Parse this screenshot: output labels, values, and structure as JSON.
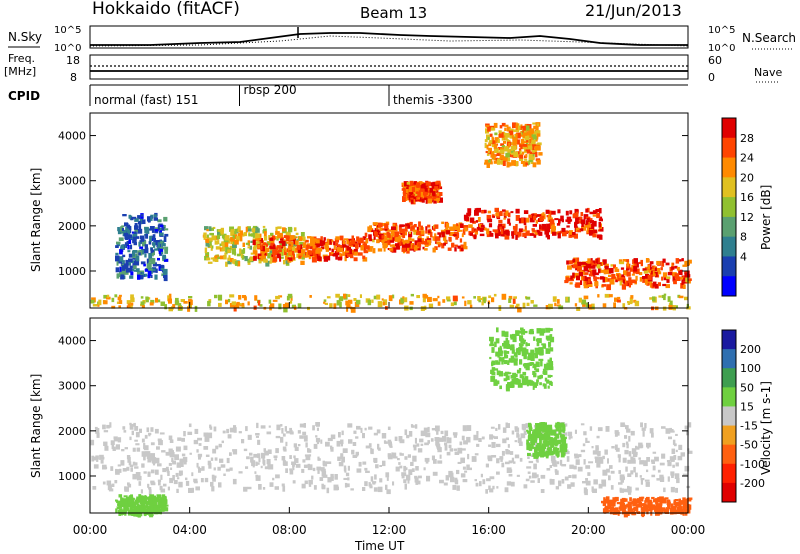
{
  "header": {
    "station": "Hokkaido (fitACF)",
    "beam": "Beam 13",
    "date": "21/Jun/2013"
  },
  "noise_panel": {
    "left_label": "N.Sky",
    "right_label": "N.Search",
    "tick_top": "10^5",
    "tick_bottom": "10^0"
  },
  "freq_panel": {
    "left_label_1": "Freq.",
    "left_label_2": "[MHz]",
    "right_label": "Nave",
    "left_tick_top": "18",
    "left_tick_bottom": "8",
    "right_tick_top": "60",
    "right_tick_bottom": "0"
  },
  "cpid_panel": {
    "label": "CPID",
    "modes": [
      {
        "name": "normal (fast) 151",
        "start_hour": 0
      },
      {
        "name": "rbsp 200",
        "start_hour": 6
      },
      {
        "name": "themis -3300",
        "start_hour": 12
      }
    ]
  },
  "power_panel": {
    "ylabel": "Slant Range [km]",
    "colorbar_label": "Power [dB]",
    "colorbar_ticks": [
      "28",
      "24",
      "20",
      "16",
      "12",
      "8",
      "4"
    ],
    "colors": [
      "#e00000",
      "#ff4400",
      "#ff8a00",
      "#e0c020",
      "#90c030",
      "#5aa070",
      "#2f7f8f",
      "#1a3fb0",
      "#0000ff"
    ]
  },
  "velocity_panel": {
    "ylabel": "Slant Range [km]",
    "colorbar_label": "Velocity [m s-1]",
    "colorbar_ticks": [
      "200",
      "100",
      "50",
      "15",
      "-15",
      "-50",
      "-100",
      "-200"
    ],
    "colors": [
      "#1a1aa0",
      "#2f6fb0",
      "#3e9e50",
      "#6fd040",
      "#c8c8c8",
      "#f0a020",
      "#ff6010",
      "#ff2000",
      "#e00000"
    ]
  },
  "x_axis": {
    "label": "Time UT",
    "ticks": [
      "00:00",
      "04:00",
      "08:00",
      "12:00",
      "16:00",
      "20:00",
      "00:00"
    ]
  },
  "chart_data": {
    "type": "heatmap",
    "x_range_hours": [
      0,
      24
    ],
    "y_range_km": [
      180,
      4500
    ],
    "y_ticks": [
      1000,
      2000,
      3000,
      4000
    ],
    "power_bands": [
      {
        "t0": 1.0,
        "t1": 3.0,
        "r0": 900,
        "r1": 2300,
        "db": 8
      },
      {
        "t0": 4.5,
        "t1": 8.5,
        "r0": 1200,
        "r1": 2000,
        "db": 18
      },
      {
        "t0": 6.5,
        "t1": 11.0,
        "r0": 1300,
        "r1": 1800,
        "db": 26
      },
      {
        "t0": 11.0,
        "t1": 15.0,
        "r0": 1500,
        "r1": 2100,
        "db": 26
      },
      {
        "t0": 15.0,
        "t1": 20.5,
        "r0": 1800,
        "r1": 2400,
        "db": 28
      },
      {
        "t0": 19.0,
        "t1": 24.0,
        "r0": 700,
        "r1": 1300,
        "db": 26
      },
      {
        "t0": 12.5,
        "t1": 14.0,
        "r0": 2600,
        "r1": 3000,
        "db": 26
      },
      {
        "t0": 15.8,
        "t1": 18.0,
        "r0": 3400,
        "r1": 4300,
        "db": 22
      },
      {
        "t0": 0.0,
        "t1": 24.0,
        "r0": 200,
        "r1": 500,
        "db": 20
      }
    ],
    "velocity_bands": [
      {
        "t0": 0.0,
        "t1": 24.0,
        "r0": 700,
        "r1": 2200,
        "v": 0
      },
      {
        "t0": 16.0,
        "t1": 18.5,
        "r0": 3000,
        "r1": 4300,
        "v": 30
      },
      {
        "t0": 17.5,
        "t1": 19.0,
        "r0": 1500,
        "r1": 2200,
        "v": 30
      },
      {
        "t0": 20.5,
        "t1": 24.0,
        "r0": 200,
        "r1": 550,
        "v": -60
      },
      {
        "t0": 1.0,
        "t1": 3.0,
        "r0": 200,
        "r1": 600,
        "v": 30
      }
    ]
  }
}
